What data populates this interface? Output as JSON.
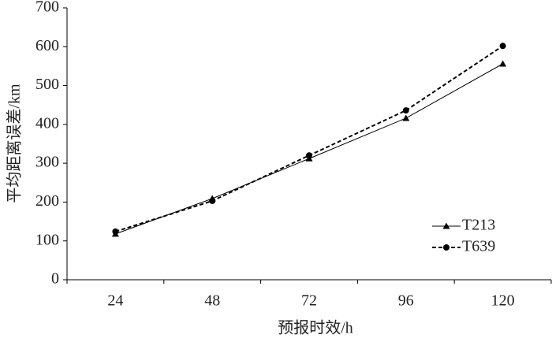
{
  "chart_data": {
    "type": "line",
    "x_label": "预报时效/h",
    "y_label": "平均距离误差/km",
    "categories": [
      "24",
      "48",
      "72",
      "96",
      "120"
    ],
    "series": [
      {
        "name": "T213",
        "color": "#000000",
        "marker": "triangle",
        "dashed": false,
        "values": [
          118,
          209,
          312,
          416,
          556
        ]
      },
      {
        "name": "T639",
        "color": "#000000",
        "marker": "circle",
        "dashed": true,
        "values": [
          124,
          203,
          320,
          436,
          602
        ]
      }
    ],
    "ylim": [
      0,
      700
    ],
    "yticks": [
      0,
      100,
      200,
      300,
      400,
      500,
      600,
      700
    ],
    "grid": false,
    "legend": "lower right"
  }
}
